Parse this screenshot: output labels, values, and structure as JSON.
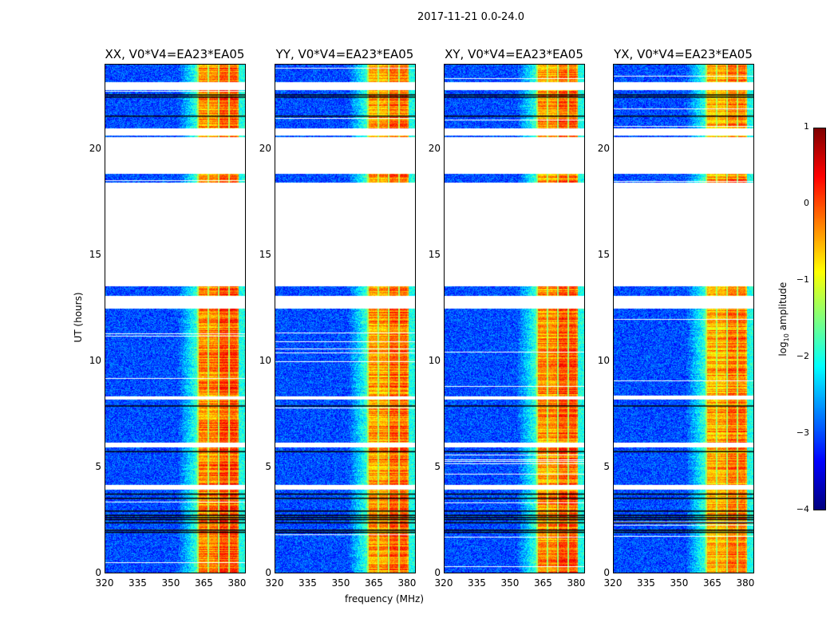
{
  "chart_data": {
    "type": "heatmap",
    "title": "2017-11-21 0.0-24.0",
    "xlabel": "frequency (MHz)",
    "ylabel": "UT (hours)",
    "xlim": [
      320,
      384
    ],
    "ylim": [
      0,
      24
    ],
    "xticks": [
      "320",
      "335",
      "350",
      "365",
      "380"
    ],
    "yticks": [
      "0",
      "5",
      "10",
      "15",
      "20"
    ],
    "panels": [
      {
        "title": "XX, V0*V4=EA23*EA05",
        "seed": 11,
        "gain": 0.1
      },
      {
        "title": "YY, V0*V4=EA23*EA05",
        "seed": 23,
        "gain": 0.0
      },
      {
        "title": "XY, V0*V4=EA23*EA05",
        "seed": 37,
        "gain": 0.05
      },
      {
        "title": "YX, V0*V4=EA23*EA05",
        "seed": 51,
        "gain": -0.1
      }
    ],
    "flagged_hours": [
      [
        22.8,
        23.2
      ],
      [
        20.65,
        21.0
      ],
      [
        18.85,
        20.6
      ],
      [
        13.55,
        18.45
      ],
      [
        12.5,
        13.1
      ],
      [
        8.2,
        8.35
      ],
      [
        5.95,
        6.15
      ],
      [
        3.95,
        4.15
      ]
    ],
    "dark_rows_hours": [
      2.0,
      2.1,
      2.45,
      2.6,
      2.7,
      2.8,
      3.0,
      3.6,
      3.8,
      5.8,
      7.95,
      21.6,
      22.5,
      22.6
    ],
    "bright_band_mhz": [
      362,
      381
    ],
    "colorbar": {
      "label": "log10 amplitude",
      "label_main": "log",
      "label_sub": "10",
      "label_rest": " amplitude",
      "range": [
        -4,
        1
      ],
      "ticks": [
        "1",
        "0",
        "−1",
        "−2",
        "−3",
        "−4"
      ],
      "colormap": "jet"
    }
  }
}
